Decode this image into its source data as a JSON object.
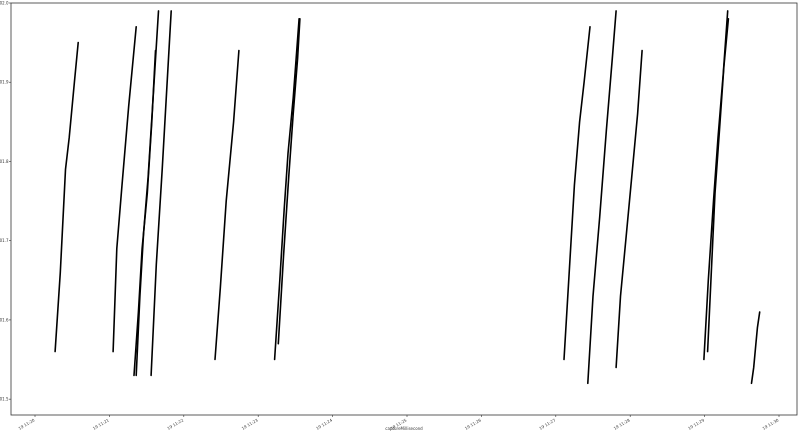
{
  "chart_data": {
    "type": "line",
    "title": "",
    "xlabel": "captureMillisecond",
    "ylabel": "",
    "x_range": [
      0,
      10.32
    ],
    "ylim": [
      101.48,
      102.0
    ],
    "grid": false,
    "legend": "none",
    "line_color": "#000000",
    "x_ticks": [
      {
        "value": 0,
        "label": "19 11:20"
      },
      {
        "value": 1,
        "label": "19 11:21"
      },
      {
        "value": 2,
        "label": "19 11:22"
      },
      {
        "value": 3,
        "label": "19 11:23"
      },
      {
        "value": 4,
        "label": "19 11:24"
      },
      {
        "value": 5,
        "label": "19 11:25"
      },
      {
        "value": 6,
        "label": "19 11:26"
      },
      {
        "value": 7,
        "label": "19 11:27"
      },
      {
        "value": 8,
        "label": "19 11:28"
      },
      {
        "value": 9,
        "label": "19 11:29"
      },
      {
        "value": 10,
        "label": "19 11:30"
      }
    ],
    "y_ticks": [
      {
        "value": 101.5,
        "label": "101.5"
      },
      {
        "value": 101.6,
        "label": "101.6"
      },
      {
        "value": 101.7,
        "label": "101.7"
      },
      {
        "value": 101.8,
        "label": "101.8"
      },
      {
        "value": 101.9,
        "label": "101.9"
      },
      {
        "value": 102.0,
        "label": "102.0"
      }
    ],
    "series": [
      {
        "x": [
          0.27,
          0.34,
          0.41,
          0.46,
          0.53,
          0.58
        ],
        "y": [
          101.56,
          101.66,
          101.79,
          101.83,
          101.9,
          101.95
        ]
      },
      {
        "x": [
          1.05,
          1.1,
          1.17,
          1.26,
          1.36
        ],
        "y": [
          101.56,
          101.69,
          101.77,
          101.87,
          101.97
        ]
      },
      {
        "x": [
          1.33,
          1.39,
          1.44,
          1.51,
          1.57,
          1.62
        ],
        "y": [
          101.53,
          101.61,
          101.69,
          101.76,
          101.85,
          101.94
        ]
      },
      {
        "x": [
          1.36,
          1.41,
          1.46,
          1.52,
          1.58,
          1.66
        ],
        "y": [
          101.53,
          101.63,
          101.71,
          101.78,
          101.87,
          101.99
        ]
      },
      {
        "x": [
          1.56,
          1.63,
          1.71,
          1.83
        ],
        "y": [
          101.53,
          101.67,
          101.79,
          101.99
        ]
      },
      {
        "x": [
          2.42,
          2.49,
          2.57,
          2.67,
          2.74
        ],
        "y": [
          101.55,
          101.64,
          101.75,
          101.85,
          101.94
        ]
      },
      {
        "x": [
          3.22,
          3.29,
          3.35,
          3.4,
          3.47,
          3.55
        ],
        "y": [
          101.55,
          101.65,
          101.74,
          101.81,
          101.88,
          101.98
        ]
      },
      {
        "x": [
          3.27,
          3.34,
          3.41,
          3.47,
          3.53,
          3.56
        ],
        "y": [
          101.57,
          101.68,
          101.78,
          101.86,
          101.93,
          101.98
        ]
      },
      {
        "x": [
          7.11,
          7.18,
          7.25,
          7.32,
          7.38,
          7.46
        ],
        "y": [
          101.55,
          101.66,
          101.77,
          101.85,
          101.9,
          101.97
        ]
      },
      {
        "x": [
          7.43,
          7.5,
          7.59,
          7.68,
          7.76,
          7.81
        ],
        "y": [
          101.52,
          101.63,
          101.73,
          101.84,
          101.93,
          101.99
        ]
      },
      {
        "x": [
          7.81,
          7.87,
          7.95,
          8.02,
          8.1,
          8.16
        ],
        "y": [
          101.54,
          101.63,
          101.71,
          101.78,
          101.86,
          101.94
        ]
      },
      {
        "x": [
          8.99,
          9.05,
          9.12,
          9.18,
          9.25,
          9.31
        ],
        "y": [
          101.55,
          101.65,
          101.75,
          101.83,
          101.91,
          101.99
        ]
      },
      {
        "x": [
          9.04,
          9.09,
          9.14,
          9.2,
          9.26,
          9.32
        ],
        "y": [
          101.56,
          101.66,
          101.76,
          101.84,
          101.92,
          101.98
        ]
      },
      {
        "x": [
          9.63,
          9.66,
          9.69,
          9.71,
          9.74
        ],
        "y": [
          101.52,
          101.54,
          101.57,
          101.59,
          101.61
        ]
      }
    ]
  }
}
